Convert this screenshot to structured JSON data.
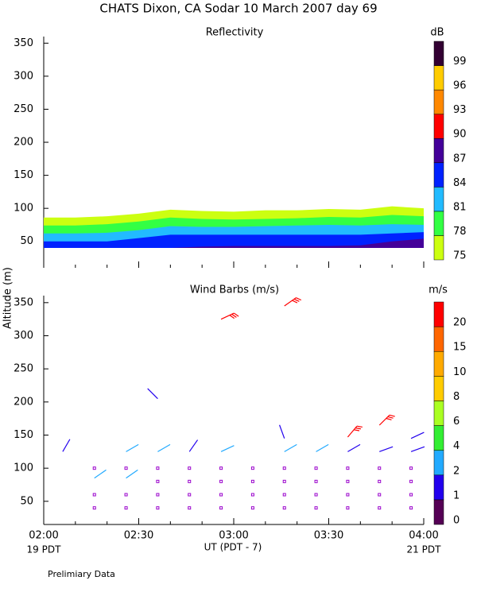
{
  "title": "CHATS Dixon, CA   Sodar   10 March 2007   day  69",
  "y_label": "Altitude (m)",
  "x_label": "UT  (PDT - 7)",
  "start_label": "19 PDT",
  "end_label": "21 PDT",
  "footnote": "Prelimiary Data",
  "chart_data": [
    {
      "type": "contour",
      "title": "Reflectivity",
      "ylim": [
        10,
        360
      ],
      "yticks": [
        50,
        100,
        150,
        200,
        250,
        300,
        350
      ],
      "x": [
        120,
        130,
        140,
        150,
        160,
        170,
        180,
        190,
        200,
        210,
        220,
        230,
        240
      ],
      "base": 40,
      "bands": [
        {
          "color": "#ccff11",
          "values": [
            86,
            86,
            88,
            92,
            98,
            96,
            95,
            97,
            97,
            99,
            98,
            103,
            100
          ]
        },
        {
          "color": "#33ff44",
          "values": [
            74,
            74,
            76,
            80,
            86,
            84,
            83,
            84,
            85,
            87,
            86,
            90,
            88
          ]
        },
        {
          "color": "#22bbff",
          "values": [
            62,
            62,
            63,
            67,
            73,
            72,
            72,
            73,
            74,
            75,
            74,
            76,
            75
          ]
        },
        {
          "color": "#0022ff",
          "values": [
            50,
            50,
            50,
            55,
            60,
            60,
            60,
            60,
            60,
            60,
            60,
            62,
            64
          ]
        },
        {
          "color": "#440099",
          "values": [
            40,
            40,
            40,
            40,
            40,
            42,
            43,
            43,
            43,
            43,
            44,
            50,
            54
          ]
        }
      ],
      "colorbar": {
        "unit": "dB",
        "ticks": [
          75,
          78,
          81,
          84,
          87,
          90,
          93,
          96,
          99
        ],
        "colors": [
          "#ccff11",
          "#33ff44",
          "#22bbff",
          "#0022ff",
          "#440099",
          "#ff0000",
          "#ff8800",
          "#ffcc00",
          "#330033"
        ]
      }
    },
    {
      "type": "barbs",
      "title": "Wind Barbs (m/s)",
      "ylim": [
        15,
        360
      ],
      "yticks": [
        50,
        100,
        150,
        200,
        250,
        300,
        350
      ],
      "xlim": [
        120,
        240
      ],
      "xticks": [
        {
          "value": 120,
          "label": "02:00"
        },
        {
          "value": 150,
          "label": "02:30"
        },
        {
          "value": 180,
          "label": "03:00"
        },
        {
          "value": 210,
          "label": "03:30"
        },
        {
          "value": 240,
          "label": "04:00"
        }
      ],
      "xminorticks": [
        130,
        140,
        160,
        170,
        190,
        200,
        220,
        230
      ],
      "calm": {
        "color": "#9900cc",
        "x": [
          136,
          146,
          156,
          166,
          176,
          186,
          196,
          206,
          216,
          226,
          236,
          136,
          146,
          156,
          166,
          176,
          186,
          196,
          206,
          216,
          226,
          236,
          156,
          166,
          176,
          186,
          196,
          206,
          216,
          226,
          236,
          136,
          146,
          156,
          166,
          176,
          186,
          196,
          206,
          216,
          226,
          236
        ],
        "y": [
          40,
          40,
          40,
          40,
          40,
          40,
          40,
          40,
          40,
          40,
          40,
          60,
          60,
          60,
          60,
          60,
          60,
          60,
          60,
          60,
          60,
          60,
          80,
          80,
          80,
          80,
          80,
          80,
          80,
          80,
          80,
          100,
          100,
          100,
          100,
          100,
          100,
          100,
          100,
          100,
          100,
          100
        ]
      },
      "barbs": [
        {
          "t": 126,
          "z": 125,
          "speed": 1.5,
          "dir": 30
        },
        {
          "t": 136,
          "z": 85,
          "speed": 3,
          "dir": 55
        },
        {
          "t": 146,
          "z": 85,
          "speed": 3,
          "dir": 55
        },
        {
          "t": 146,
          "z": 125,
          "speed": 3,
          "dir": 60
        },
        {
          "t": 156,
          "z": 125,
          "speed": 3,
          "dir": 60
        },
        {
          "t": 156,
          "z": 205,
          "speed": 1.5,
          "dir": 315
        },
        {
          "t": 166,
          "z": 125,
          "speed": 1.5,
          "dir": 35
        },
        {
          "t": 176,
          "z": 325,
          "speed": 22,
          "dir": 65
        },
        {
          "t": 176,
          "z": 125,
          "speed": 3,
          "dir": 65
        },
        {
          "t": 196,
          "z": 345,
          "speed": 22,
          "dir": 55
        },
        {
          "t": 196,
          "z": 145,
          "speed": 1.5,
          "dir": 340
        },
        {
          "t": 196,
          "z": 125,
          "speed": 3,
          "dir": 60
        },
        {
          "t": 206,
          "z": 125,
          "speed": 3,
          "dir": 60
        },
        {
          "t": 216,
          "z": 147,
          "speed": 22,
          "dir": 40
        },
        {
          "t": 216,
          "z": 125,
          "speed": 1.5,
          "dir": 60
        },
        {
          "t": 226,
          "z": 165,
          "speed": 22,
          "dir": 45
        },
        {
          "t": 226,
          "z": 125,
          "speed": 1.5,
          "dir": 70
        },
        {
          "t": 236,
          "z": 145,
          "speed": 1.5,
          "dir": 65
        },
        {
          "t": 236,
          "z": 125,
          "speed": 1.5,
          "dir": 70
        }
      ],
      "colorbar": {
        "unit": "m/s",
        "ticks": [
          0,
          1,
          2,
          4,
          6,
          8,
          10,
          15,
          20
        ],
        "colors": [
          "#550055",
          "#2200ee",
          "#22aaff",
          "#33ee33",
          "#aaff22",
          "#ffcc00",
          "#ffaa00",
          "#ff6600",
          "#ff0000"
        ]
      }
    }
  ]
}
